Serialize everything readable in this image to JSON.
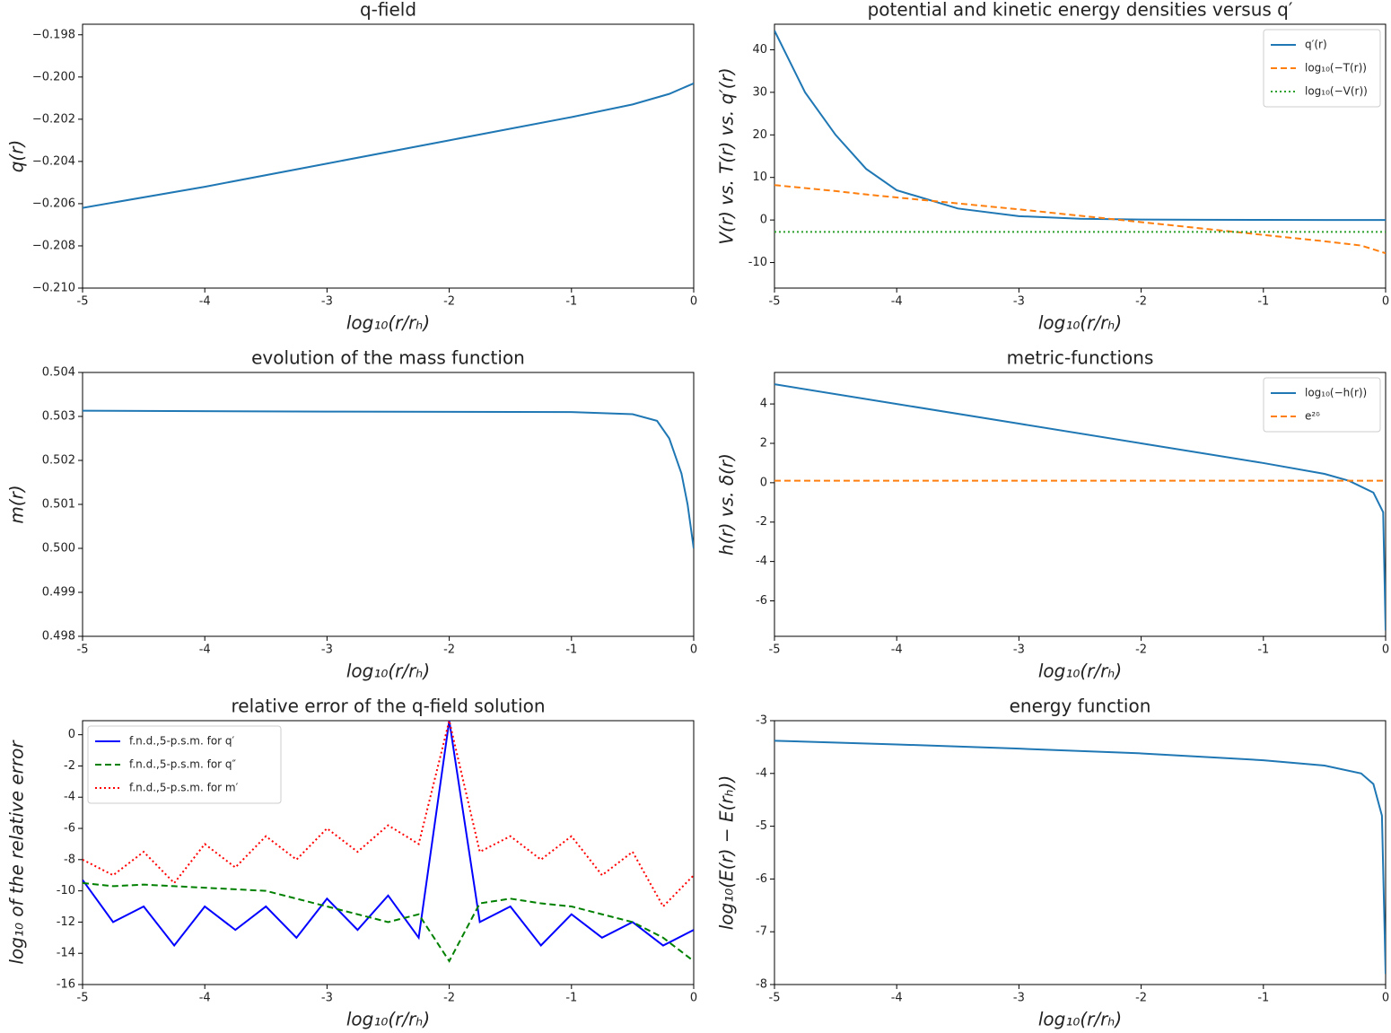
{
  "chart_data": [
    {
      "type": "line",
      "title": "q-field",
      "xlabel": "log₁₀(r/rₕ)",
      "ylabel": "q(r)",
      "x": [
        -5,
        -4,
        -3,
        -2,
        -1,
        -0.5,
        -0.2,
        0
      ],
      "series": [
        {
          "name": "q(r)",
          "color": "#1f77b4",
          "style": "solid",
          "values": [
            -0.2062,
            -0.2052,
            -0.2041,
            -0.203,
            -0.2019,
            -0.2013,
            -0.2008,
            -0.2003
          ]
        }
      ],
      "legend": false,
      "xlim": [
        -5,
        0
      ],
      "xticks": [
        -5,
        -4,
        -3,
        -2,
        -1,
        0
      ],
      "ylim": [
        -0.21,
        -0.1975
      ],
      "yticks": [
        {
          "value": -0.198,
          "label": "−0.198"
        },
        {
          "value": -0.2,
          "label": "−0.200"
        },
        {
          "value": -0.202,
          "label": "−0.202"
        },
        {
          "value": -0.204,
          "label": "−0.204"
        },
        {
          "value": -0.206,
          "label": "−0.206"
        },
        {
          "value": -0.208,
          "label": "−0.208"
        },
        {
          "value": -0.21,
          "label": "−0.210"
        }
      ]
    },
    {
      "type": "line",
      "title": "potential and kinetic energy densities versus q′",
      "xlabel": "log₁₀(r/rₕ)",
      "ylabel": "V(r) vs. T(r) vs. q′(r)",
      "x": [
        -5,
        -4.75,
        -4.5,
        -4.25,
        -4,
        -3.5,
        -3,
        -2.5,
        -2,
        -1.5,
        -1,
        -0.5,
        -0.2,
        0
      ],
      "series": [
        {
          "name": "q′(r)",
          "color": "#1f77b4",
          "style": "solid",
          "values": [
            44.5,
            30,
            20,
            12,
            7,
            2.7,
            0.9,
            0.3,
            0.1,
            0.05,
            0.02,
            0.01,
            0,
            0
          ]
        },
        {
          "name": "log₁₀(−T(r))",
          "color": "#ff7f0e",
          "style": "dashed",
          "values": [
            8.2,
            7.5,
            6.8,
            6,
            5.3,
            3.9,
            2.5,
            1,
            -0.5,
            -2,
            -3.5,
            -5,
            -6,
            -7.8
          ]
        },
        {
          "name": "log₁₀(−V(r))",
          "color": "#2ca02c",
          "style": "dotted",
          "values": [
            -2.8,
            -2.8,
            -2.8,
            -2.8,
            -2.8,
            -2.8,
            -2.8,
            -2.8,
            -2.8,
            -2.8,
            -2.8,
            -2.8,
            -2.8,
            -2.8
          ]
        }
      ],
      "legend": "upper right",
      "xlim": [
        -5,
        0
      ],
      "xticks": [
        -5,
        -4,
        -3,
        -2,
        -1,
        0
      ],
      "ylim": [
        -16,
        46
      ],
      "yticks": [
        -10,
        0,
        10,
        20,
        30,
        40
      ]
    },
    {
      "type": "line",
      "title": "evolution of the mass function",
      "xlabel": "log₁₀(r/rₕ)",
      "ylabel": "m(r)",
      "x": [
        -5,
        -3,
        -1,
        -0.5,
        -0.3,
        -0.2,
        -0.1,
        -0.05,
        0
      ],
      "series": [
        {
          "name": "m(r)",
          "color": "#1f77b4",
          "style": "solid",
          "values": [
            0.50313,
            0.50311,
            0.5031,
            0.50305,
            0.5029,
            0.5025,
            0.5017,
            0.501,
            0.5
          ]
        }
      ],
      "legend": false,
      "xlim": [
        -5,
        0
      ],
      "xticks": [
        -5,
        -4,
        -3,
        -2,
        -1,
        0
      ],
      "ylim": [
        0.498,
        0.504
      ],
      "yticks": [
        {
          "value": 0.498,
          "label": "0.498"
        },
        {
          "value": 0.499,
          "label": "0.499"
        },
        {
          "value": 0.5,
          "label": "0.500"
        },
        {
          "value": 0.501,
          "label": "0.501"
        },
        {
          "value": 0.502,
          "label": "0.502"
        },
        {
          "value": 0.503,
          "label": "0.503"
        },
        {
          "value": 0.504,
          "label": "0.504"
        }
      ]
    },
    {
      "type": "line",
      "title": "metric-functions",
      "xlabel": "log₁₀(r/rₕ)",
      "ylabel": "h(r) vs. δ(r)",
      "x": [
        -5,
        -4,
        -3,
        -2,
        -1,
        -0.5,
        -0.3,
        -0.1,
        -0.02,
        0
      ],
      "series": [
        {
          "name": "log₁₀(−h(r))",
          "color": "#1f77b4",
          "style": "solid",
          "values": [
            5,
            4,
            3,
            2,
            1,
            0.45,
            0.1,
            -0.5,
            -1.5,
            -7.5
          ]
        },
        {
          "name": "e²ᵟ",
          "color": "#ff7f0e",
          "style": "dashed",
          "values": [
            0.1,
            0.1,
            0.1,
            0.1,
            0.1,
            0.1,
            0.1,
            0.1,
            0.1,
            0.1
          ]
        }
      ],
      "legend": "upper right",
      "xlim": [
        -5,
        0
      ],
      "xticks": [
        -5,
        -4,
        -3,
        -2,
        -1,
        0
      ],
      "ylim": [
        -7.8,
        5.6
      ],
      "yticks": [
        -6,
        -4,
        -2,
        0,
        2,
        4
      ]
    },
    {
      "type": "line",
      "title": "relative error of the q-field solution",
      "xlabel": "log₁₀(r/rₕ)",
      "ylabel": "log₁₀ of the relative error",
      "x": [
        -5,
        -4.75,
        -4.5,
        -4.25,
        -4,
        -3.75,
        -3.5,
        -3.25,
        -3,
        -2.75,
        -2.5,
        -2.25,
        -2,
        -1.75,
        -1.5,
        -1.25,
        -1,
        -0.75,
        -0.5,
        -0.25,
        0
      ],
      "series": [
        {
          "name": "f.n.d.,5-p.s.m. for q′",
          "color": "#0000ff",
          "style": "solid",
          "values": [
            -9.3,
            -12,
            -11,
            -13.5,
            -11,
            -12.5,
            -11,
            -13,
            -10.5,
            -12.5,
            -10.3,
            -13,
            0.9,
            -12,
            -11,
            -13.5,
            -11.5,
            -13,
            -12,
            -13.5,
            -12.5
          ]
        },
        {
          "name": "f.n.d.,5-p.s.m. for q″",
          "color": "#008000",
          "style": "dashed",
          "values": [
            -9.5,
            -9.7,
            -9.6,
            -9.7,
            -9.8,
            -9.9,
            -10,
            -10.5,
            -11,
            -11.5,
            -12,
            -11.5,
            -14.5,
            -10.8,
            -10.5,
            -10.8,
            -11,
            -11.5,
            -12,
            -13,
            -14.5
          ]
        },
        {
          "name": "f.n.d.,5-p.s.m. for m′",
          "color": "#ff0000",
          "style": "dotted",
          "values": [
            -8,
            -9,
            -7.5,
            -9.5,
            -7,
            -8.5,
            -6.5,
            -8,
            -6,
            -7.5,
            -5.8,
            -7,
            0.9,
            -7.5,
            -6.5,
            -8,
            -6.5,
            -9,
            -7.5,
            -11,
            -9
          ]
        }
      ],
      "legend": "upper left",
      "xlim": [
        -5,
        0
      ],
      "xticks": [
        -5,
        -4,
        -3,
        -2,
        -1,
        0
      ],
      "ylim": [
        -16,
        0.9
      ],
      "yticks": [
        -16,
        -14,
        -12,
        -10,
        -8,
        -6,
        -4,
        -2,
        0
      ]
    },
    {
      "type": "line",
      "title": "energy function",
      "xlabel": "log₁₀(r/rₕ)",
      "ylabel": "log₁₀(E(r) − E(rₕ))",
      "x": [
        -5,
        -4,
        -3,
        -2,
        -1,
        -0.5,
        -0.2,
        -0.1,
        -0.03,
        0
      ],
      "series": [
        {
          "name": "E(r)",
          "color": "#1f77b4",
          "style": "solid",
          "values": [
            -3.38,
            -3.45,
            -3.53,
            -3.62,
            -3.75,
            -3.85,
            -4,
            -4.2,
            -4.8,
            -7.8
          ]
        }
      ],
      "legend": false,
      "xlim": [
        -5,
        0
      ],
      "xticks": [
        -5,
        -4,
        -3,
        -2,
        -1,
        0
      ],
      "ylim": [
        -8,
        -3
      ],
      "yticks": [
        -8,
        -7,
        -6,
        -5,
        -4,
        -3
      ]
    }
  ]
}
